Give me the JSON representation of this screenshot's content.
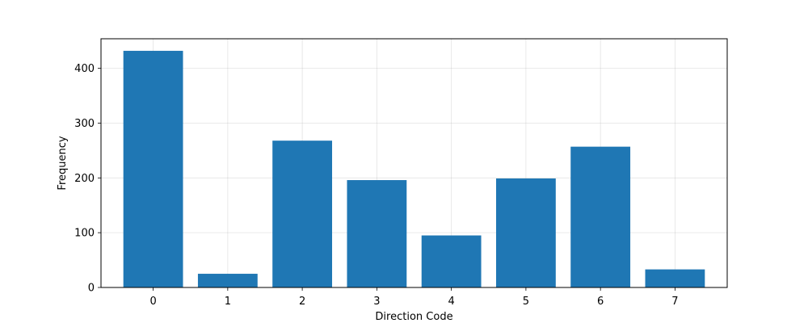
{
  "chart_data": {
    "type": "bar",
    "categories": [
      "0",
      "1",
      "2",
      "3",
      "4",
      "5",
      "6",
      "7"
    ],
    "values": [
      432,
      25,
      268,
      196,
      95,
      199,
      257,
      33
    ],
    "xlabel": "Direction Code",
    "ylabel": "Frequency",
    "ylim": [
      0,
      454
    ],
    "yticks": [
      0,
      100,
      200,
      300,
      400
    ],
    "grid": true,
    "bar_color": "#1f77b4"
  }
}
